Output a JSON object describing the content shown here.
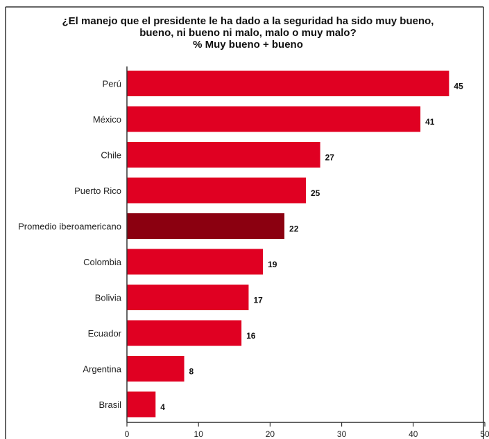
{
  "title_lines": [
    "¿El manejo que el presidente le ha dado a la seguridad ha sido muy bueno,",
    "bueno, ni bueno ni malo, malo o muy malo?",
    "% Muy bueno + bueno"
  ],
  "colors": {
    "bar": "#e00022",
    "highlight": "#8b0010",
    "frame": "#333333",
    "axis": "#333333"
  },
  "chart_data": {
    "type": "bar",
    "orientation": "horizontal",
    "categories": [
      "Perú",
      "México",
      "Chile",
      "Puerto Rico",
      "Promedio iberoamericano",
      "Colombia",
      "Bolivia",
      "Ecuador",
      "Argentina",
      "Brasil"
    ],
    "values": [
      45,
      41,
      27,
      25,
      22,
      19,
      17,
      16,
      8,
      4
    ],
    "highlight_category": "Promedio iberoamericano",
    "xlim": [
      0,
      50
    ],
    "xticks": [
      0,
      10,
      20,
      30,
      40,
      50
    ],
    "xlabel": "",
    "ylabel": "",
    "grid": false,
    "data_labels": true
  }
}
